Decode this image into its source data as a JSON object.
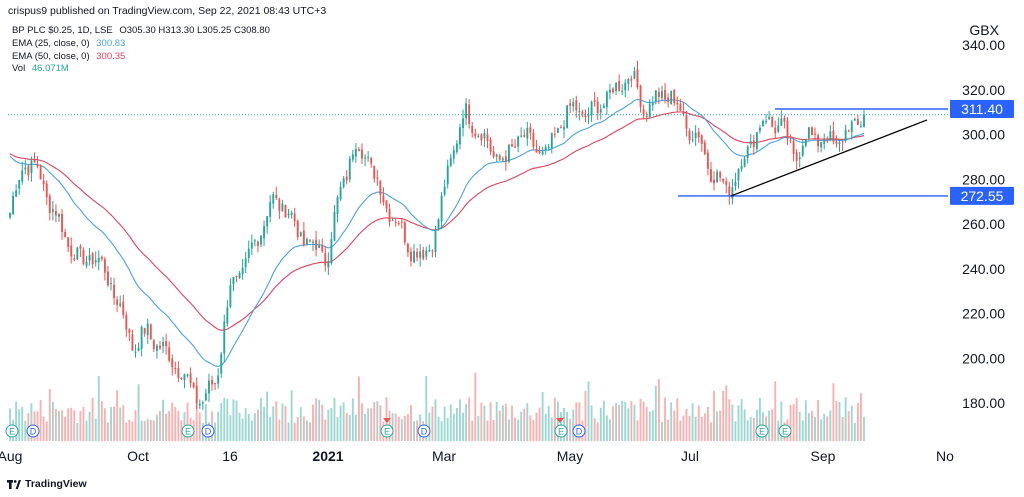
{
  "header": {
    "publish_line": "crispus9 published on TradingView.com, Sep 22, 2021 08:43 UTC+3"
  },
  "legend": {
    "symbol": "BP PLC $0.25, 1D, LSE",
    "ohlc": "O305.30 H313.30 L305.25 C308.80",
    "ema25_label": "EMA (25, close, 0)",
    "ema25_value": "300.83",
    "ema50_label": "EMA (50, close, 0)",
    "ema50_value": "300.35",
    "vol_label": "Vol",
    "vol_value": "46.071M"
  },
  "footer": {
    "brand": "TradingView"
  },
  "colors": {
    "up": "#26a69a",
    "down": "#ef5350",
    "ema25": "#4aa3df",
    "ema50": "#e0445e",
    "hline": "#2962ff",
    "trend": "#000000",
    "current_price": "#26a69a"
  },
  "chart_data": {
    "type": "candlestick",
    "symbol": "BP PLC",
    "interval": "1D",
    "currency": "GBX",
    "x_tick_labels": [
      "Aug",
      "Oct",
      "16",
      "2021",
      "Mar",
      "May",
      "Jul",
      "Sep",
      "No"
    ],
    "y_ticks": [
      180,
      200,
      220,
      240,
      260,
      280,
      300,
      320,
      340
    ],
    "y_tick_labels": [
      "180.00",
      "200.00",
      "220.00",
      "240.00",
      "260.00",
      "280.00",
      "300.00",
      "320.00",
      "340.00"
    ],
    "ylim": [
      164,
      350
    ],
    "current_price": 308.8,
    "horizontal_lines": [
      {
        "label": "311.40",
        "value": 311.4
      },
      {
        "label": "272.55",
        "value": 272.55
      }
    ],
    "trendline": {
      "from": [
        "Jul",
        272.55
      ],
      "to": [
        "Oct",
        306.5
      ]
    },
    "price_path": [
      [
        "Aug",
        265
      ],
      [
        "Aug",
        288
      ],
      [
        "Aug",
        284
      ],
      [
        "Aug",
        268
      ],
      [
        "Aug",
        255
      ],
      [
        "Sep",
        243
      ],
      [
        "Sep",
        246
      ],
      [
        "Sep",
        238
      ],
      [
        "Sep",
        222
      ],
      [
        "Oct",
        205
      ],
      [
        "Oct",
        212
      ],
      [
        "Oct",
        204
      ],
      [
        "Oct",
        198
      ],
      [
        "Oct",
        188
      ],
      [
        "Oct",
        180
      ],
      [
        "Nov",
        192
      ],
      [
        "Nov",
        232
      ],
      [
        "Nov",
        240
      ],
      [
        "Nov",
        255
      ],
      [
        "Nov",
        270
      ],
      [
        "Dec",
        268
      ],
      [
        "Dec",
        255
      ],
      [
        "Dec",
        250
      ],
      [
        "Dec",
        245
      ],
      [
        "Jan",
        275
      ],
      [
        "Jan",
        295
      ],
      [
        "Jan",
        290
      ],
      [
        "Feb",
        272
      ],
      [
        "Feb",
        262
      ],
      [
        "Feb",
        250
      ],
      [
        "Feb",
        245
      ],
      [
        "Mar",
        258
      ],
      [
        "Mar",
        290
      ],
      [
        "Mar",
        310
      ],
      [
        "Mar",
        302
      ],
      [
        "Apr",
        292
      ],
      [
        "Apr",
        288
      ],
      [
        "Apr",
        300
      ],
      [
        "Apr",
        295
      ],
      [
        "May",
        290
      ],
      [
        "May",
        306
      ],
      [
        "May",
        312
      ],
      [
        "May",
        308
      ],
      [
        "Jun",
        315
      ],
      [
        "Jun",
        320
      ],
      [
        "Jun",
        328
      ],
      [
        "Jun",
        312
      ],
      [
        "Jun",
        316
      ],
      [
        "Jul",
        318
      ],
      [
        "Jul",
        305
      ],
      [
        "Jul",
        298
      ],
      [
        "Jul",
        283
      ],
      [
        "Jul",
        275
      ],
      [
        "Aug",
        285
      ],
      [
        "Aug",
        300
      ],
      [
        "Aug",
        307
      ],
      [
        "Aug",
        303
      ],
      [
        "Aug",
        290
      ],
      [
        "Sep",
        300
      ],
      [
        "Sep",
        298
      ],
      [
        "Sep",
        296
      ],
      [
        "Sep",
        302
      ],
      [
        "Sep",
        308.8
      ]
    ],
    "volume_markers": [
      {
        "label": "E",
        "position": "Aug"
      },
      {
        "label": "D",
        "position": "Aug"
      },
      {
        "label": "E",
        "position": "Nov"
      },
      {
        "label": "D",
        "position": "Nov"
      },
      {
        "label": "E",
        "position": "Feb"
      },
      {
        "label": "D",
        "position": "Mar"
      },
      {
        "label": "E",
        "position": "Jun"
      },
      {
        "label": "D",
        "position": "Jun"
      },
      {
        "label": "E",
        "position": "Jul"
      },
      {
        "label": "E",
        "position": "Aug"
      },
      {
        "label": "D",
        "position": "Aug"
      }
    ],
    "title": "",
    "xlabel": "",
    "ylabel": "GBX",
    "grid": false
  }
}
